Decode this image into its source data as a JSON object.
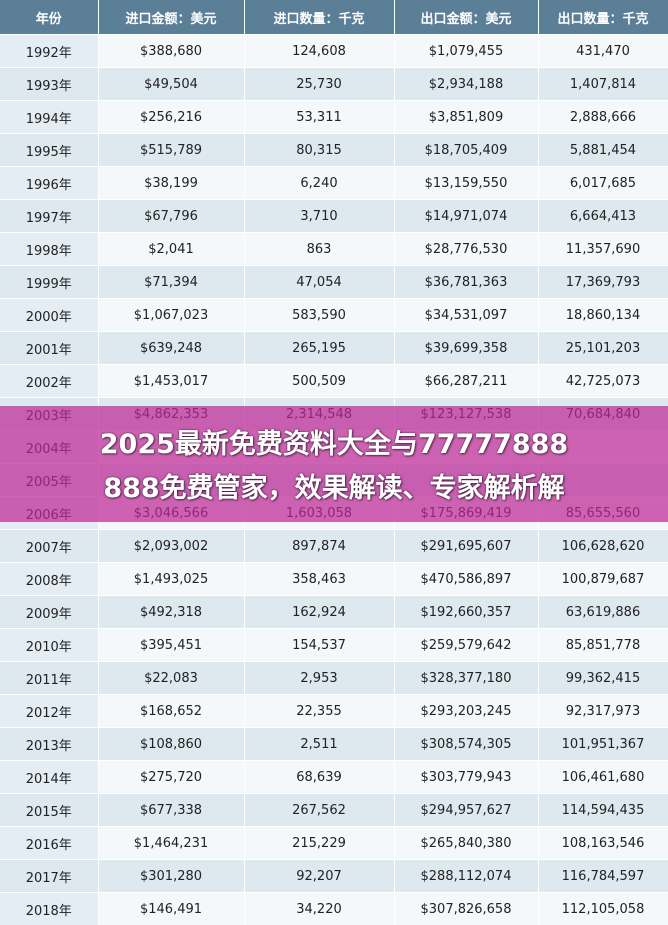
{
  "table": {
    "headers": [
      "年份",
      "进口金额：美元",
      "进口数量：千克",
      "出口金额：美元",
      "出口数量：千克"
    ],
    "rows": [
      [
        "1992年",
        "$388,680",
        "124,608",
        "$1,079,455",
        "431,470"
      ],
      [
        "1993年",
        "$49,504",
        "25,730",
        "$2,934,188",
        "1,407,814"
      ],
      [
        "1994年",
        "$256,216",
        "53,311",
        "$3,851,809",
        "2,888,666"
      ],
      [
        "1995年",
        "$515,789",
        "80,315",
        "$18,705,409",
        "5,881,454"
      ],
      [
        "1996年",
        "$38,199",
        "6,240",
        "$13,159,550",
        "6,017,685"
      ],
      [
        "1997年",
        "$67,796",
        "3,710",
        "$14,971,074",
        "6,664,413"
      ],
      [
        "1998年",
        "$2,041",
        "863",
        "$28,776,530",
        "11,357,690"
      ],
      [
        "1999年",
        "$71,394",
        "47,054",
        "$36,781,363",
        "17,369,793"
      ],
      [
        "2000年",
        "$1,067,023",
        "583,590",
        "$34,531,097",
        "18,860,134"
      ],
      [
        "2001年",
        "$639,248",
        "265,195",
        "$39,699,358",
        "25,101,203"
      ],
      [
        "2002年",
        "$1,453,017",
        "500,509",
        "$66,287,211",
        "42,725,073"
      ],
      [
        "2003年",
        "$4,862,353",
        "2,314,548",
        "$123,127,538",
        "70,684,840"
      ],
      [
        "2004年",
        "",
        "",
        "",
        ""
      ],
      [
        "2005年",
        "",
        "",
        "",
        ""
      ],
      [
        "2006年",
        "$3,046,566",
        "1,603,058",
        "$175,869,419",
        "85,655,560"
      ],
      [
        "2007年",
        "$2,093,002",
        "897,874",
        "$291,695,607",
        "106,628,620"
      ],
      [
        "2008年",
        "$1,493,025",
        "358,463",
        "$470,586,897",
        "100,879,687"
      ],
      [
        "2009年",
        "$492,318",
        "162,924",
        "$192,660,357",
        "63,619,886"
      ],
      [
        "2010年",
        "$395,451",
        "154,537",
        "$259,579,642",
        "85,851,778"
      ],
      [
        "2011年",
        "$22,083",
        "2,953",
        "$328,377,180",
        "99,362,415"
      ],
      [
        "2012年",
        "$168,652",
        "22,355",
        "$293,203,245",
        "92,317,973"
      ],
      [
        "2013年",
        "$108,860",
        "2,511",
        "$308,574,305",
        "101,951,367"
      ],
      [
        "2014年",
        "$275,720",
        "68,639",
        "$303,779,943",
        "106,461,680"
      ],
      [
        "2015年",
        "$677,338",
        "267,562",
        "$294,957,627",
        "114,594,435"
      ],
      [
        "2016年",
        "$1,464,231",
        "215,229",
        "$265,840,380",
        "108,163,546"
      ],
      [
        "2017年",
        "$301,280",
        "92,207",
        "$288,112,074",
        "116,784,597"
      ],
      [
        "2018年",
        "$146,491",
        "34,220",
        "$307,826,658",
        "112,105,058"
      ]
    ]
  },
  "banner": {
    "line1": "2025最新免费资料大全与77777888",
    "line2": "888免费管家，效果解读、专家解析解"
  },
  "colors": {
    "header_bg": "#5b7f97",
    "row_light": "#f4f8fb",
    "row_dark": "#dde8ef",
    "banner_bg": "#be2896"
  }
}
